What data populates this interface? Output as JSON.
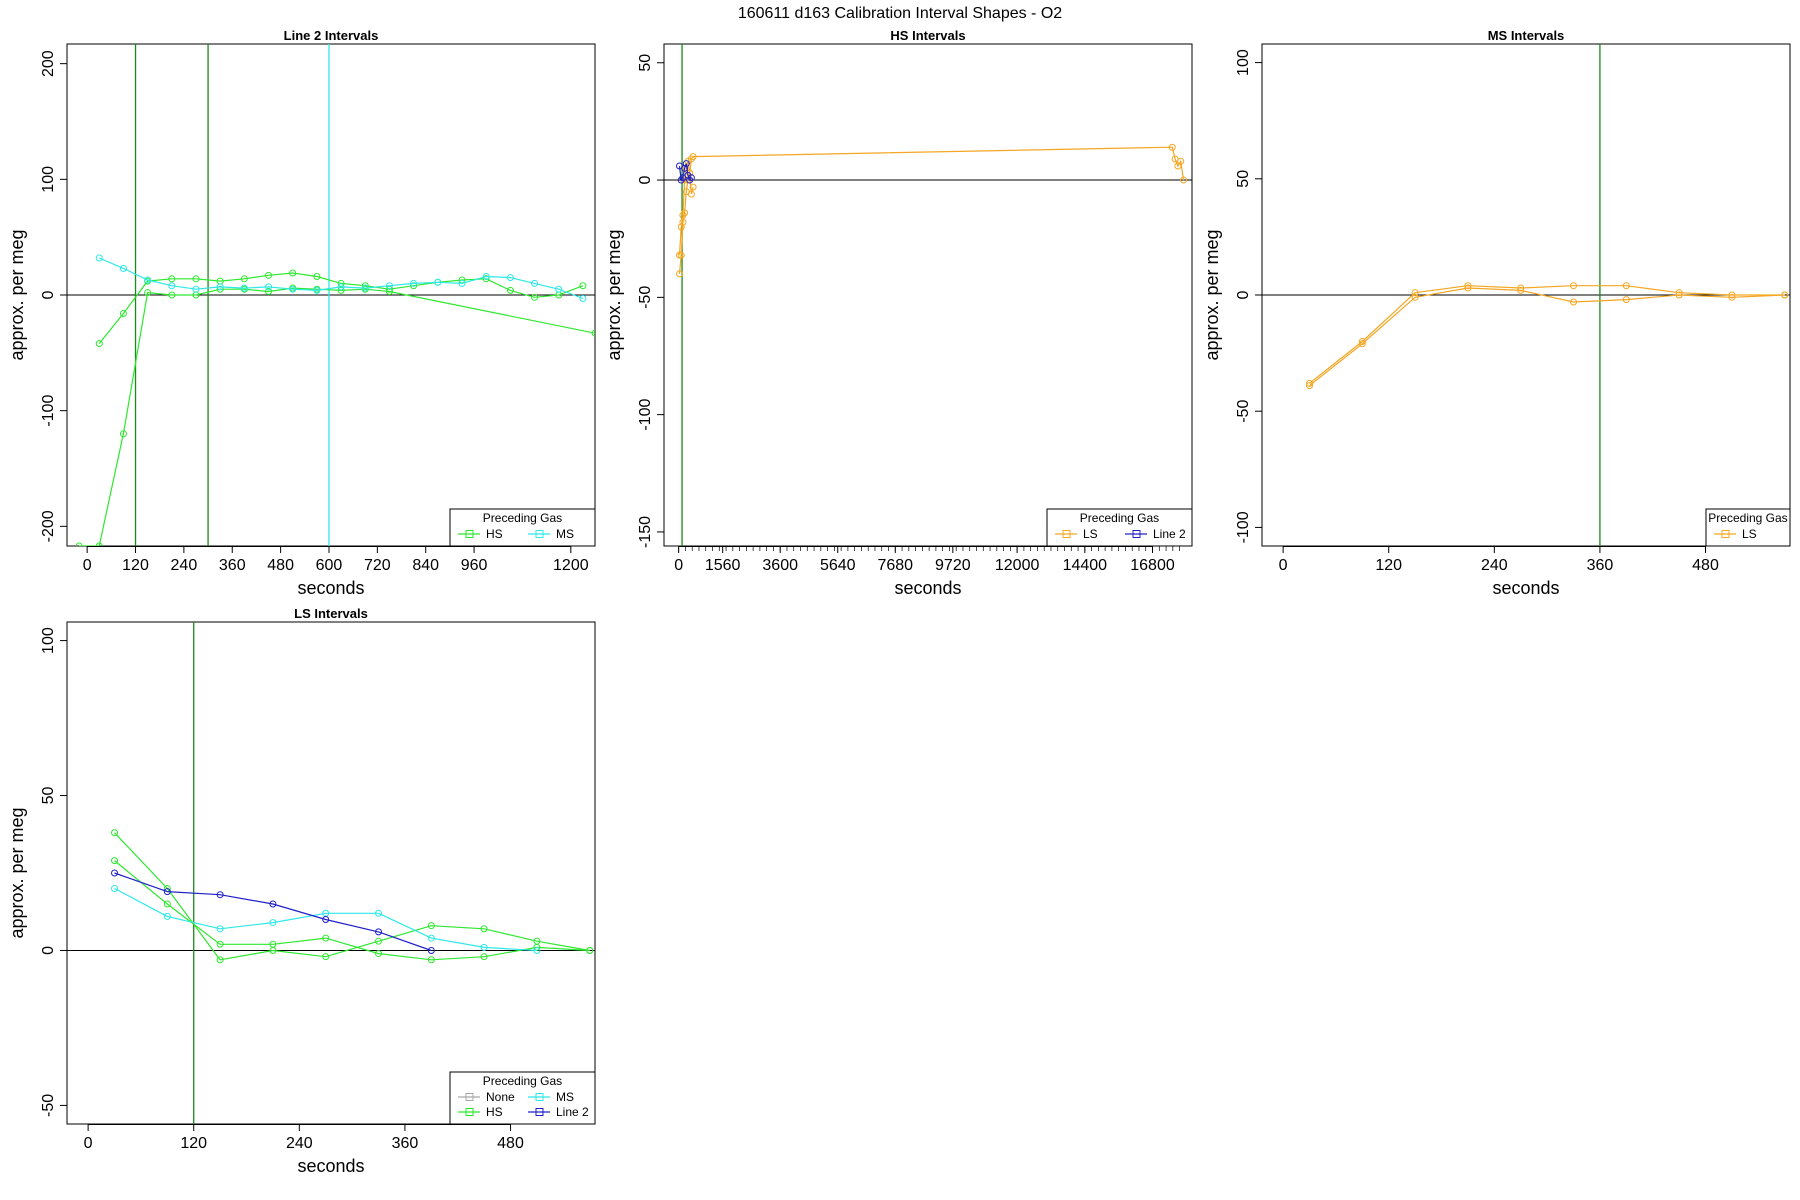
{
  "title": "160611   d163   Calibration Interval Shapes - O2",
  "legend_title": "Preceding Gas",
  "colors": {
    "None": "#a8a8a8",
    "HS": "#2ee82e",
    "MS": "#2ee8e8",
    "LS": "#f5a623",
    "Line 2": "#2020c8",
    "vline": "#1a8a1a",
    "vline_ms": "#2ee8e8"
  },
  "chart_data": [
    {
      "type": "line",
      "title": "Line 2 Intervals",
      "xlabel": "seconds",
      "ylabel": "approx. per meg",
      "xlim": [
        -50,
        1260
      ],
      "ylim": [
        -217,
        217
      ],
      "xticks": [
        0,
        120,
        240,
        360,
        480,
        600,
        720,
        840,
        960,
        1200
      ],
      "yticks": [
        -200,
        -100,
        0,
        100,
        200
      ],
      "hline": 0,
      "vlines": [
        {
          "x": 120,
          "color": "vline"
        },
        {
          "x": 300,
          "color": "vline"
        },
        {
          "x": 600,
          "color": "vline_ms"
        }
      ],
      "legend": {
        "position": "bottom-right",
        "entries": [
          "HS",
          "MS"
        ]
      },
      "series": [
        {
          "name": "HS",
          "color": "HS",
          "x": [
            30,
            90,
            150,
            210,
            270,
            330,
            390,
            450,
            510,
            570,
            630,
            690,
            750,
            810,
            870,
            930,
            990,
            1050,
            1110,
            1170,
            1230
          ],
          "y": [
            -42,
            -16,
            12,
            14,
            14,
            12,
            14,
            17,
            19,
            16,
            10,
            8,
            5,
            8,
            11,
            13,
            14,
            4,
            -2,
            0,
            8
          ]
        },
        {
          "name": "HS",
          "color": "HS",
          "x": [
            -20,
            30,
            90,
            150,
            210,
            270,
            330,
            390,
            450,
            510,
            570,
            630,
            690,
            750,
            1260
          ],
          "y": [
            -217,
            -217,
            -120,
            2,
            0,
            0,
            5,
            5,
            3,
            6,
            5,
            4,
            5,
            3,
            -33
          ]
        },
        {
          "name": "MS",
          "color": "MS",
          "x": [
            30,
            90,
            150,
            210,
            270,
            330,
            390,
            450,
            510,
            570,
            630,
            690,
            750,
            810,
            870,
            930,
            990,
            1050,
            1110,
            1170,
            1230
          ],
          "y": [
            32,
            23,
            13,
            8,
            5,
            7,
            6,
            7,
            5,
            4,
            7,
            6,
            8,
            10,
            11,
            10,
            16,
            15,
            10,
            5,
            -3
          ]
        }
      ]
    },
    {
      "type": "line",
      "title": "HS Intervals",
      "xlabel": "seconds",
      "ylabel": "approx. per meg",
      "xlim": [
        -520,
        18200
      ],
      "ylim": [
        -156,
        58
      ],
      "xticks": [
        0,
        1560,
        3600,
        5640,
        7680,
        9720,
        12000,
        14400,
        16800
      ],
      "yticks": [
        -150,
        -100,
        -50,
        0,
        50
      ],
      "hline": 0,
      "vlines": [
        {
          "x": 120,
          "color": "vline"
        }
      ],
      "legend": {
        "position": "bottom-right",
        "entries": [
          "LS",
          "Line 2"
        ]
      },
      "series": [
        {
          "name": "LS",
          "color": "LS",
          "x": [
            30,
            90,
            150,
            210,
            270,
            330,
            390,
            450,
            510,
            17500,
            17600,
            17700,
            17800,
            17900
          ],
          "y": [
            -40,
            -32,
            -18,
            -14,
            -5,
            0,
            3,
            9,
            10,
            14,
            9,
            6,
            8,
            0
          ]
        },
        {
          "name": "LS",
          "color": "LS",
          "x": [
            30,
            90,
            150,
            210,
            270,
            330,
            390,
            450,
            510
          ],
          "y": [
            -32,
            -20,
            -15,
            0,
            5,
            8,
            3,
            -6,
            -3
          ]
        },
        {
          "name": "Line 2",
          "color": "Line 2",
          "x": [
            30,
            90,
            150,
            210,
            270,
            330,
            390,
            450
          ],
          "y": [
            6,
            0,
            1,
            5,
            7,
            2,
            0,
            1
          ]
        }
      ]
    },
    {
      "type": "line",
      "title": "MS Intervals",
      "xlabel": "seconds",
      "ylabel": "approx. per meg",
      "xlim": [
        -24,
        576
      ],
      "ylim": [
        -108,
        108
      ],
      "xticks": [
        0,
        120,
        240,
        360,
        480
      ],
      "yticks": [
        -100,
        -50,
        0,
        50,
        100
      ],
      "hline": 0,
      "vlines": [
        {
          "x": 360,
          "color": "vline"
        }
      ],
      "legend": {
        "position": "bottom-right",
        "entries": [
          "LS"
        ]
      },
      "series": [
        {
          "name": "LS",
          "color": "LS",
          "x": [
            30,
            90,
            150,
            210,
            270,
            330,
            390,
            450,
            510,
            570
          ],
          "y": [
            -39,
            -21,
            -1,
            3,
            2,
            -3,
            -2,
            0,
            -1,
            0
          ]
        },
        {
          "name": "LS",
          "color": "LS",
          "x": [
            30,
            90,
            150,
            210,
            270,
            330,
            390,
            450,
            510,
            570
          ],
          "y": [
            -38,
            -20,
            1,
            4,
            3,
            4,
            4,
            1,
            0,
            0
          ]
        }
      ]
    },
    {
      "type": "line",
      "title": "LS Intervals",
      "xlabel": "seconds",
      "ylabel": "approx. per meg",
      "xlim": [
        -24,
        576
      ],
      "ylim": [
        -56,
        106
      ],
      "xticks": [
        0,
        120,
        240,
        360,
        480
      ],
      "yticks": [
        -50,
        0,
        50,
        100
      ],
      "hline": 0,
      "vlines": [
        {
          "x": 120,
          "color": "vline"
        }
      ],
      "legend": {
        "position": "bottom-right",
        "entries": [
          "None",
          "MS",
          "HS",
          "Line 2"
        ]
      },
      "series": [
        {
          "name": "HS",
          "color": "HS",
          "x": [
            30,
            90,
            150,
            210,
            270,
            330,
            390,
            450,
            510,
            570
          ],
          "y": [
            38,
            20,
            -3,
            0,
            -2,
            3,
            8,
            7,
            3,
            0
          ]
        },
        {
          "name": "HS",
          "color": "HS",
          "x": [
            30,
            90,
            150,
            210,
            270,
            330,
            390,
            450,
            510,
            570
          ],
          "y": [
            29,
            15,
            2,
            2,
            4,
            -1,
            -3,
            -2,
            1,
            0
          ]
        },
        {
          "name": "MS",
          "color": "MS",
          "x": [
            30,
            90,
            150,
            210,
            270,
            330,
            390,
            450,
            510
          ],
          "y": [
            20,
            11,
            7,
            9,
            12,
            12,
            4,
            1,
            0
          ]
        },
        {
          "name": "Line 2",
          "color": "Line 2",
          "x": [
            30,
            90,
            150,
            210,
            270,
            330,
            390
          ],
          "y": [
            25,
            19,
            18,
            15,
            10,
            6,
            0
          ]
        }
      ]
    }
  ]
}
